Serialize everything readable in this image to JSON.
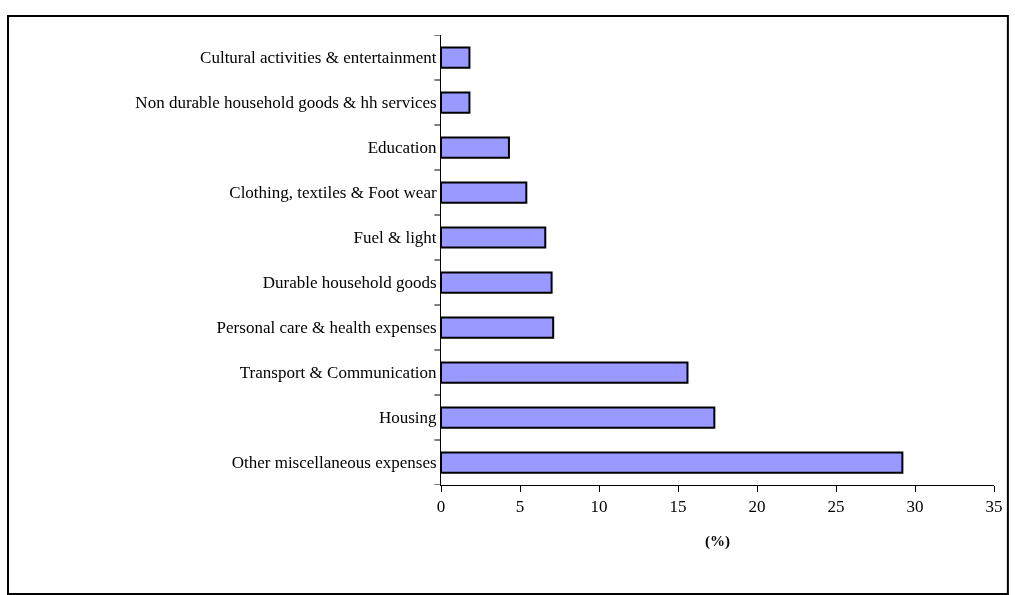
{
  "chart_data": {
    "type": "bar",
    "orientation": "horizontal",
    "xlabel": "(%)",
    "categories": [
      "Cultural activities & entertainment",
      "Non durable household goods & hh services",
      "Education",
      "Clothing, textiles & Foot wear",
      "Fuel & light",
      "Durable household goods",
      "Personal care & health expenses",
      "Transport & Communication",
      "Housing",
      "Other miscellaneous expenses"
    ],
    "values": [
      1.8,
      1.8,
      4.3,
      5.4,
      6.6,
      7.0,
      7.1,
      15.6,
      17.3,
      29.2
    ],
    "color": "#9999ff",
    "xlim": [
      0,
      35
    ],
    "xticks": [
      0,
      5,
      10,
      15,
      20,
      25,
      30,
      35
    ]
  }
}
